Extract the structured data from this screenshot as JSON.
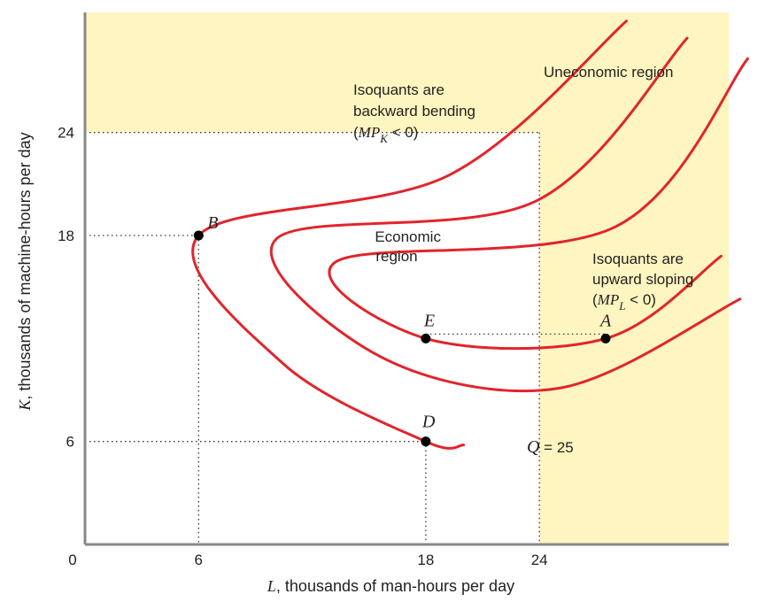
{
  "chart_data": {
    "type": "line",
    "title": "",
    "xlabel": {
      "var": "L",
      "rest": ", thousands of man-hours per day"
    },
    "ylabel": {
      "var": "K",
      "rest": ", thousands of machine-hours per day"
    },
    "xlim": [
      0,
      34
    ],
    "ylim": [
      0,
      31
    ],
    "x_ticks": [
      {
        "value": 0,
        "label": "0"
      },
      {
        "value": 6,
        "label": "6"
      },
      {
        "value": 18,
        "label": "18"
      },
      {
        "value": 24,
        "label": "24"
      }
    ],
    "y_ticks": [
      {
        "value": 6,
        "label": "6"
      },
      {
        "value": 18,
        "label": "18"
      },
      {
        "value": 24,
        "label": "24"
      }
    ],
    "grid": false,
    "colors": {
      "isoquant": "#e2242b",
      "uneconomic_fill": "#fef5c0",
      "axis": "#888888",
      "text": "#231f20"
    },
    "series": [
      {
        "label": "Q = 25",
        "points": [
          [
            28.6,
            30.5
          ],
          [
            19.2,
            21.5
          ],
          [
            6.0,
            18.0
          ],
          [
            10.5,
            10.5
          ],
          [
            18.0,
            6.0
          ],
          [
            20.0,
            5.8
          ]
        ]
      },
      {
        "label": "",
        "points": [
          [
            31.8,
            29.5
          ],
          [
            23.8,
            20.0
          ],
          [
            10.1,
            17.8
          ],
          [
            15.5,
            11.0
          ],
          [
            25.0,
            9.1
          ],
          [
            34.6,
            14.3
          ]
        ]
      },
      {
        "label": "",
        "points": [
          [
            35.0,
            28.3
          ],
          [
            28.0,
            18.5
          ],
          [
            13.3,
            16.5
          ],
          [
            18.0,
            12.0
          ],
          [
            27.5,
            12.0
          ],
          [
            33.6,
            16.8
          ]
        ]
      }
    ],
    "points": [
      {
        "label": "B",
        "x": 6,
        "y": 18
      },
      {
        "label": "E",
        "x": 18,
        "y": 12
      },
      {
        "label": "A",
        "x": 27.5,
        "y": 12
      },
      {
        "label": "D",
        "x": 18,
        "y": 6
      }
    ],
    "economic_region": {
      "l_max": 24,
      "k_max": 24
    },
    "annotations": {
      "uneconomic": "Uneconomic region",
      "economic": [
        "Economic",
        "region"
      ],
      "backward": [
        "Isoquants are",
        "backward bending"
      ],
      "backward_mp": {
        "open": "(",
        "var": "MP",
        "sub": "K",
        "rest": " < 0)"
      },
      "upward": [
        "Isoquants are",
        "upward sloping"
      ],
      "upward_mp": {
        "open": "(",
        "var": "MP",
        "sub": "L",
        "rest": " < 0)"
      },
      "q_label": {
        "var": "Q",
        "rest": " = 25"
      }
    }
  }
}
